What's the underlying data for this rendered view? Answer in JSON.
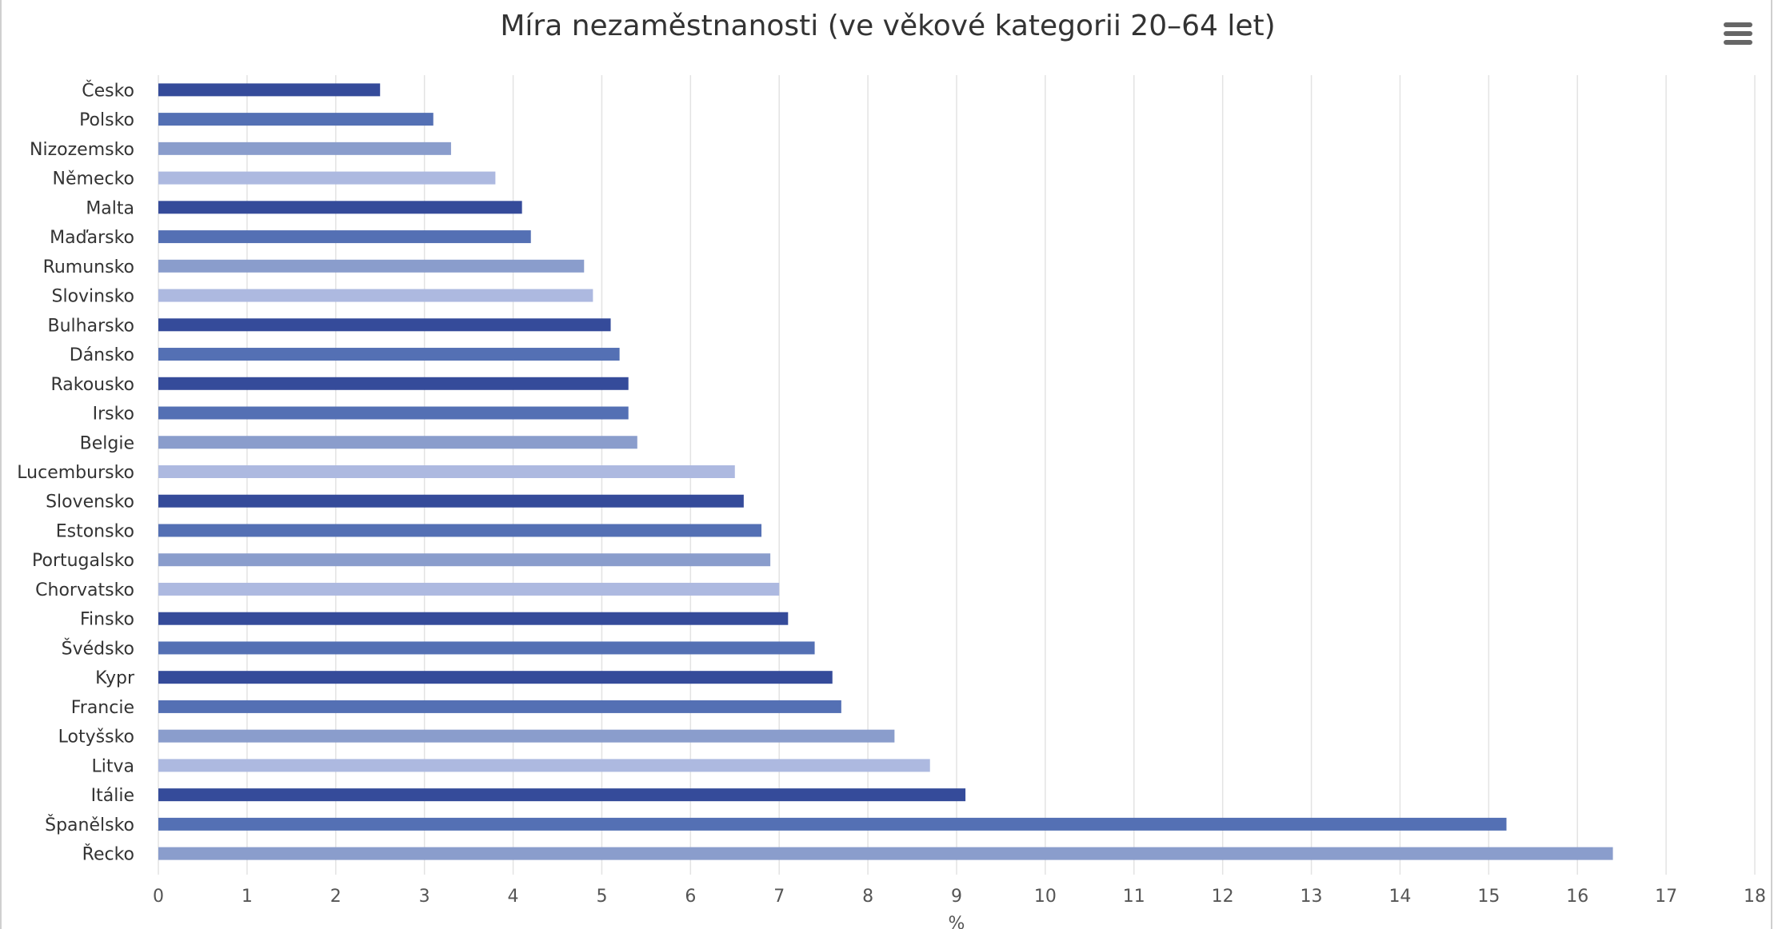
{
  "chart_data": {
    "type": "bar",
    "orientation": "horizontal",
    "title": "Míra nezaměstnanosti (ve věkové kategorii 20–64 let)",
    "xlabel": "%",
    "ylabel": "",
    "xlim": [
      0,
      18
    ],
    "x_ticks": [
      "0",
      "1",
      "2",
      "3",
      "4",
      "5",
      "6",
      "7",
      "8",
      "9",
      "10",
      "11",
      "12",
      "13",
      "14",
      "15",
      "16",
      "17",
      "18"
    ],
    "grid": "vertical",
    "categories": [
      "Česko",
      "Polsko",
      "Nizozemsko",
      "Německo",
      "Malta",
      "Maďarsko",
      "Rumunsko",
      "Slovinsko",
      "Bulharsko",
      "Dánsko",
      "Rakousko",
      "Irsko",
      "Belgie",
      "Lucembursko",
      "Slovensko",
      "Estonsko",
      "Portugalsko",
      "Chorvatsko",
      "Finsko",
      "Švédsko",
      "Kypr",
      "Francie",
      "Lotyšsko",
      "Litva",
      "Itálie",
      "Španělsko",
      "Řecko"
    ],
    "values": [
      2.5,
      3.1,
      3.3,
      3.8,
      4.1,
      4.2,
      4.8,
      4.9,
      5.1,
      5.2,
      5.3,
      5.3,
      5.4,
      6.5,
      6.6,
      6.8,
      6.9,
      7.0,
      7.1,
      7.4,
      7.6,
      7.7,
      8.3,
      8.7,
      9.1,
      15.2,
      16.4
    ],
    "colors": [
      "#354b9a",
      "#5470b4",
      "#8a9dcc",
      "#adb9e0",
      "#354b9a",
      "#5470b4",
      "#8a9dcc",
      "#adb9e0",
      "#354b9a",
      "#5470b4",
      "#354b9a",
      "#5470b4",
      "#8a9dcc",
      "#adb9e0",
      "#354b9a",
      "#5470b4",
      "#8a9dcc",
      "#adb9e0",
      "#354b9a",
      "#5470b4",
      "#354b9a",
      "#5470b4",
      "#8a9dcc",
      "#adb9e0",
      "#354b9a",
      "#5470b4",
      "#8a9dcc"
    ]
  },
  "menu": {
    "icon": "hamburger-menu-icon"
  }
}
